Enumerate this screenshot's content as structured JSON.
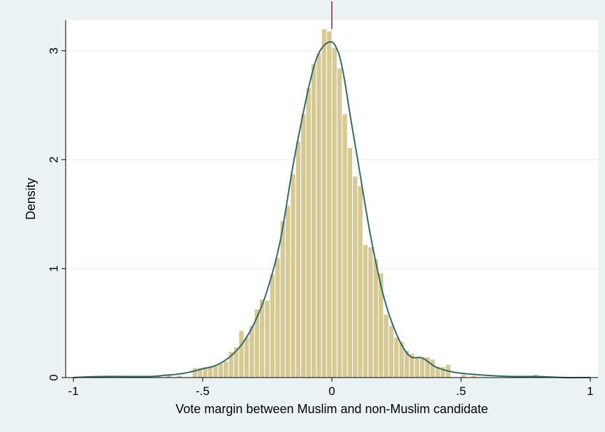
{
  "chart_data": {
    "type": "bar",
    "title": "",
    "xlabel": "Vote margin between Muslim and non-Muslim candidate",
    "ylabel": "Density",
    "xlim": [
      -1.03,
      1.03
    ],
    "ylim": [
      0,
      3.28
    ],
    "xticks": [
      {
        "value": -1,
        "label": "-1"
      },
      {
        "value": -0.5,
        "label": "-.5"
      },
      {
        "value": 0,
        "label": "0"
      },
      {
        "value": 0.5,
        "label": ".5"
      },
      {
        "value": 1,
        "label": "1"
      }
    ],
    "yticks": [
      {
        "value": 0,
        "label": "0"
      },
      {
        "value": 1,
        "label": "1"
      },
      {
        "value": 2,
        "label": "2"
      },
      {
        "value": 3,
        "label": "3"
      }
    ],
    "grid": true,
    "legend": "none",
    "cutoff_line_x": 0,
    "histogram": {
      "bin_width": 0.02,
      "bins": [
        {
          "x0": -1.0,
          "density": 0.01
        },
        {
          "x0": -0.88,
          "density": 0.01
        },
        {
          "x0": -0.68,
          "density": 0.02
        },
        {
          "x0": -0.64,
          "density": 0.03
        },
        {
          "x0": -0.6,
          "density": 0.02
        },
        {
          "x0": -0.54,
          "density": 0.09
        },
        {
          "x0": -0.52,
          "density": 0.09
        },
        {
          "x0": -0.5,
          "density": 0.1
        },
        {
          "x0": -0.48,
          "density": 0.1
        },
        {
          "x0": -0.46,
          "density": 0.11
        },
        {
          "x0": -0.44,
          "density": 0.13
        },
        {
          "x0": -0.42,
          "density": 0.15
        },
        {
          "x0": -0.4,
          "density": 0.24
        },
        {
          "x0": -0.38,
          "density": 0.28
        },
        {
          "x0": -0.36,
          "density": 0.43
        },
        {
          "x0": -0.34,
          "density": 0.37
        },
        {
          "x0": -0.32,
          "density": 0.48
        },
        {
          "x0": -0.3,
          "density": 0.63
        },
        {
          "x0": -0.28,
          "density": 0.72
        },
        {
          "x0": -0.26,
          "density": 0.71
        },
        {
          "x0": -0.24,
          "density": 0.95
        },
        {
          "x0": -0.22,
          "density": 1.1
        },
        {
          "x0": -0.2,
          "density": 1.44
        },
        {
          "x0": -0.18,
          "density": 1.58
        },
        {
          "x0": -0.16,
          "density": 1.87
        },
        {
          "x0": -0.14,
          "density": 2.17
        },
        {
          "x0": -0.12,
          "density": 2.42
        },
        {
          "x0": -0.1,
          "density": 2.66
        },
        {
          "x0": -0.08,
          "density": 2.88
        },
        {
          "x0": -0.06,
          "density": 2.98
        },
        {
          "x0": -0.04,
          "density": 3.2
        },
        {
          "x0": -0.02,
          "density": 3.18
        },
        {
          "x0": 0.0,
          "density": 3.03
        },
        {
          "x0": 0.02,
          "density": 2.84
        },
        {
          "x0": 0.04,
          "density": 2.42
        },
        {
          "x0": 0.06,
          "density": 2.11
        },
        {
          "x0": 0.08,
          "density": 1.85
        },
        {
          "x0": 0.1,
          "density": 1.76
        },
        {
          "x0": 0.12,
          "density": 1.22
        },
        {
          "x0": 0.14,
          "density": 1.2
        },
        {
          "x0": 0.16,
          "density": 1.09
        },
        {
          "x0": 0.18,
          "density": 0.96
        },
        {
          "x0": 0.2,
          "density": 0.58
        },
        {
          "x0": 0.22,
          "density": 0.48
        },
        {
          "x0": 0.24,
          "density": 0.37
        },
        {
          "x0": 0.26,
          "density": 0.33
        },
        {
          "x0": 0.28,
          "density": 0.25
        },
        {
          "x0": 0.3,
          "density": 0.22
        },
        {
          "x0": 0.32,
          "density": 0.19
        },
        {
          "x0": 0.34,
          "density": 0.19
        },
        {
          "x0": 0.36,
          "density": 0.19
        },
        {
          "x0": 0.38,
          "density": 0.17
        },
        {
          "x0": 0.4,
          "density": 0.1
        },
        {
          "x0": 0.42,
          "density": 0.1
        },
        {
          "x0": 0.44,
          "density": 0.12
        },
        {
          "x0": 0.5,
          "density": 0.03
        },
        {
          "x0": 0.54,
          "density": 0.02
        },
        {
          "x0": 0.78,
          "density": 0.03
        }
      ]
    },
    "density_curve": {
      "x": [
        -1.0,
        -0.9,
        -0.8,
        -0.7,
        -0.65,
        -0.6,
        -0.55,
        -0.5,
        -0.45,
        -0.4,
        -0.35,
        -0.3,
        -0.25,
        -0.2,
        -0.15,
        -0.1,
        -0.07,
        -0.05,
        -0.03,
        -0.01,
        0.0,
        0.01,
        0.03,
        0.05,
        0.07,
        0.1,
        0.15,
        0.2,
        0.25,
        0.3,
        0.35,
        0.4,
        0.45,
        0.5,
        0.6,
        0.7,
        0.8,
        0.9,
        1.0
      ],
      "y": [
        0.0,
        0.01,
        0.01,
        0.01,
        0.02,
        0.03,
        0.05,
        0.08,
        0.11,
        0.18,
        0.3,
        0.5,
        0.8,
        1.25,
        1.95,
        2.55,
        2.85,
        2.98,
        3.05,
        3.08,
        3.08,
        3.06,
        2.95,
        2.72,
        2.42,
        2.0,
        1.3,
        0.75,
        0.4,
        0.2,
        0.18,
        0.1,
        0.06,
        0.04,
        0.02,
        0.01,
        0.01,
        0.0,
        0.0
      ]
    },
    "colors": {
      "background": "#eaf2f3",
      "plot_background": "#ffffff",
      "bar_fill": "#d6c994",
      "bar_edge": "#ffffff",
      "density_line": "#2f6b6a",
      "cutoff_line": "#9a1a3c",
      "grid": "#eaf2f3",
      "axis": "#000000"
    }
  }
}
